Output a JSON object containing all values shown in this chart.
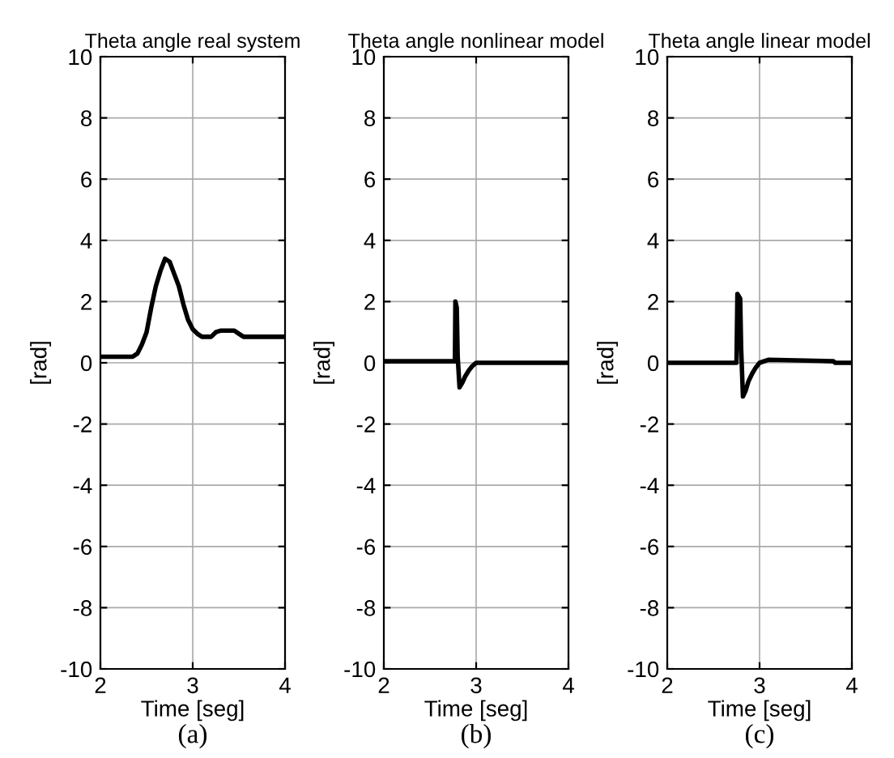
{
  "chart_data": [
    {
      "type": "line",
      "title": "Theta angle real system",
      "xlabel": "Time [seg]",
      "ylabel": "[rad]",
      "annotations": [
        "(a)"
      ],
      "xlim": [
        2,
        4
      ],
      "ylim": [
        -10,
        10
      ],
      "xticks": [
        2,
        3,
        4
      ],
      "yticks": [
        -10,
        -8,
        -6,
        -4,
        -2,
        0,
        2,
        4,
        6,
        8,
        10
      ],
      "grid": true,
      "series": [
        {
          "color": "#000000",
          "x": [
            2,
            2.35,
            2.4,
            2.45,
            2.5,
            2.55,
            2.6,
            2.65,
            2.7,
            2.75,
            2.8,
            2.85,
            2.9,
            2.95,
            3.0,
            3.05,
            3.1,
            3.2,
            3.25,
            3.3,
            3.45,
            3.5,
            3.55,
            4
          ],
          "values": [
            0.2,
            0.2,
            0.3,
            0.6,
            1.0,
            1.8,
            2.5,
            3.0,
            3.4,
            3.3,
            2.9,
            2.5,
            1.9,
            1.4,
            1.1,
            0.95,
            0.85,
            0.85,
            1.0,
            1.05,
            1.05,
            0.95,
            0.85,
            0.85
          ]
        }
      ]
    },
    {
      "type": "line",
      "title": "Theta angle nonlinear model",
      "xlabel": "Time [seg]",
      "ylabel": "[rad]",
      "annotations": [
        "(b)"
      ],
      "xlim": [
        2,
        4
      ],
      "ylim": [
        -10,
        10
      ],
      "xticks": [
        2,
        3,
        4
      ],
      "yticks": [
        -10,
        -8,
        -6,
        -4,
        -2,
        0,
        2,
        4,
        6,
        8,
        10
      ],
      "grid": true,
      "series": [
        {
          "color": "#000000",
          "x": [
            2,
            2.77,
            2.775,
            2.79,
            2.8,
            2.82,
            2.85,
            2.88,
            2.92,
            2.96,
            3.0,
            4
          ],
          "values": [
            0.05,
            0.05,
            2.0,
            1.8,
            0.2,
            -0.8,
            -0.65,
            -0.45,
            -0.25,
            -0.1,
            0,
            0
          ]
        }
      ]
    },
    {
      "type": "line",
      "title": "Theta angle linear model",
      "xlabel": "Time [seg]",
      "ylabel": "[rad]",
      "annotations": [
        "(c)"
      ],
      "xlim": [
        2,
        4
      ],
      "ylim": [
        -10,
        10
      ],
      "xticks": [
        2,
        3,
        4
      ],
      "yticks": [
        -10,
        -8,
        -6,
        -4,
        -2,
        0,
        2,
        4,
        6,
        8,
        10
      ],
      "grid": true,
      "series": [
        {
          "color": "#000000",
          "x": [
            2,
            2.75,
            2.76,
            2.79,
            2.8,
            2.82,
            2.85,
            2.88,
            2.92,
            2.96,
            3.0,
            3.1,
            3.8,
            3.82,
            4
          ],
          "values": [
            0,
            0,
            2.25,
            2.1,
            0.5,
            -1.1,
            -0.9,
            -0.6,
            -0.35,
            -0.15,
            0,
            0.1,
            0.05,
            0,
            0
          ]
        }
      ]
    }
  ]
}
